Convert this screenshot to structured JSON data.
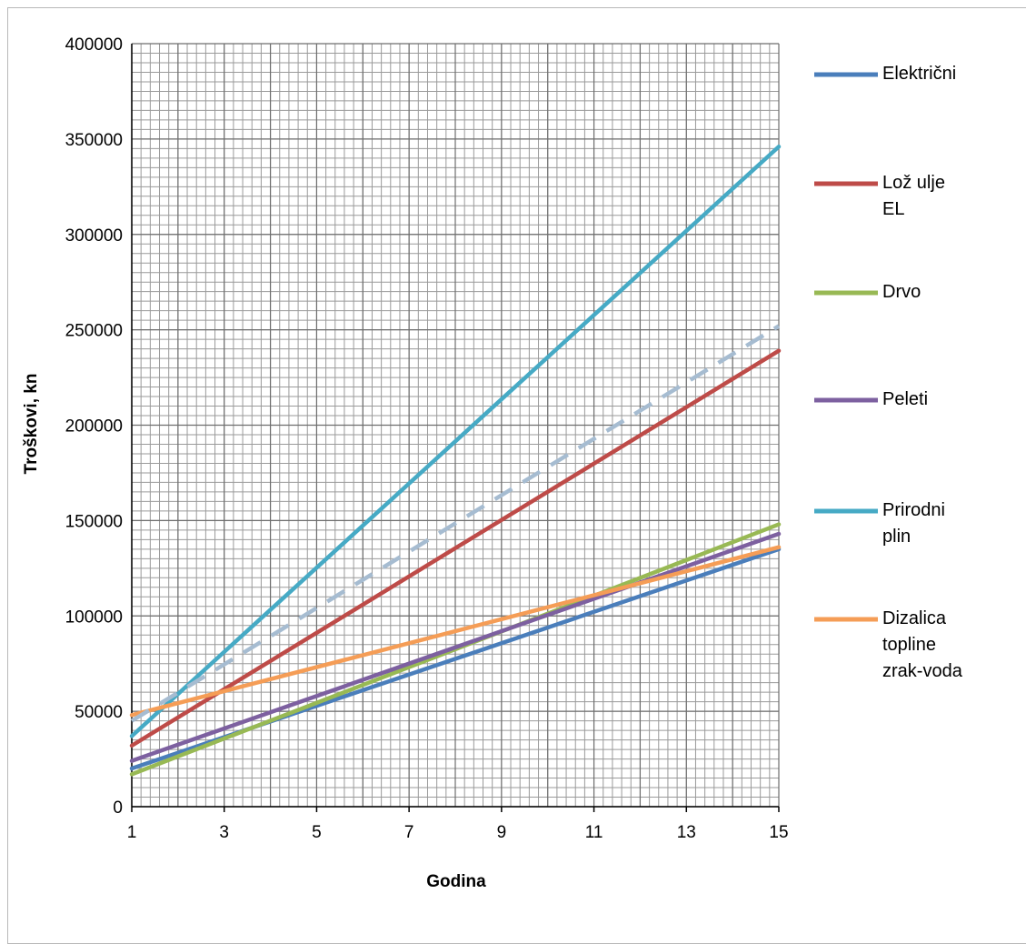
{
  "chart_data": {
    "type": "line",
    "xlabel": "Godina",
    "ylabel": "Troškovi, kn",
    "xlim": [
      1,
      15
    ],
    "ylim": [
      0,
      400000
    ],
    "x_ticks": [
      "1",
      "3",
      "5",
      "7",
      "9",
      "11",
      "13",
      "15"
    ],
    "y_ticks": [
      "0",
      "50000",
      "100000",
      "150000",
      "200000",
      "250000",
      "300000",
      "350000",
      "400000"
    ],
    "grid": true,
    "legend_position": "right",
    "x": [
      1,
      15
    ],
    "series": [
      {
        "name": "Električni",
        "color": "#4a7ebb",
        "style": "solid",
        "values": [
          20000,
          135000
        ]
      },
      {
        "name": "Lož ulje EL",
        "color": "#be4b48",
        "style": "solid",
        "values": [
          32000,
          239000
        ]
      },
      {
        "name": "Drvo",
        "color": "#98b954",
        "style": "solid",
        "values": [
          17000,
          148000
        ]
      },
      {
        "name": "Peleti",
        "color": "#7d60a0",
        "style": "solid",
        "values": [
          24000,
          143000
        ]
      },
      {
        "name": "Prirodni plin",
        "color": "#46aac5",
        "style": "solid",
        "values": [
          37000,
          346000
        ]
      },
      {
        "name": "Dizalica topline zrak-voda",
        "color": "#f59d56",
        "style": "solid",
        "values": [
          48000,
          136000
        ]
      },
      {
        "name": "",
        "color": "#a6bcd1",
        "style": "dashed",
        "values": [
          45000,
          252000
        ]
      }
    ],
    "legend": [
      {
        "series": "Električni",
        "lines": [
          "Električni"
        ]
      },
      {
        "series": "Lož ulje EL",
        "lines": [
          "Lož ulje",
          "EL"
        ]
      },
      {
        "series": "Drvo",
        "lines": [
          "Drvo"
        ]
      },
      {
        "series": "Peleti",
        "lines": [
          "Peleti"
        ]
      },
      {
        "series": "Prirodni plin",
        "lines": [
          "Prirodni",
          "plin"
        ]
      },
      {
        "series": "Dizalica topline zrak-voda",
        "lines": [
          "Dizalica",
          "topline",
          "zrak-voda"
        ]
      }
    ]
  }
}
